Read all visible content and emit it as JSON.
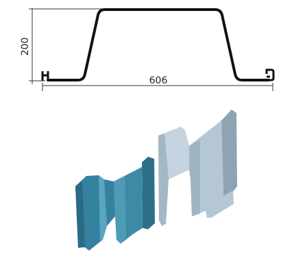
{
  "profile": {
    "height_label": "200",
    "width_label": "606"
  },
  "colors": {
    "profile_stroke": "#111111",
    "dimension_line": "#333333",
    "pile_left": "#3e8aa6",
    "pile_left_dark": "#2d6f88",
    "pile_right": "#b4c7d3",
    "pile_right_dark": "#8da4b3"
  }
}
